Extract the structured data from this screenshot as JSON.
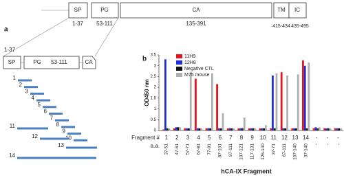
{
  "diagram": {
    "panel_label": "a",
    "domains": [
      {
        "label": "SP",
        "range": "1-37"
      },
      {
        "label": "PG",
        "range": "53-111"
      },
      {
        "label": "CA",
        "range": "135-391"
      },
      {
        "label": "TM",
        "range": "415-434"
      },
      {
        "label": "IC",
        "range": "435-495"
      }
    ],
    "zoom": {
      "range": "1-37",
      "sp": "SP",
      "pg": "PG",
      "pg_range": "53-111",
      "ca": "CA"
    },
    "fragment_labels": [
      "1",
      "2",
      "3",
      "4",
      "5",
      "6",
      "7",
      "8",
      "9",
      "10",
      "11",
      "12",
      "13",
      "14"
    ]
  },
  "chart_data": {
    "type": "bar",
    "panel_label": "b",
    "title": "hCA-IX Fragment",
    "y_label": "OD450 nm",
    "row_labels": [
      "Fragment #",
      "a.a."
    ],
    "categories": [
      "1",
      "2",
      "3",
      "4",
      "5",
      "6",
      "7",
      "8",
      "9",
      "10",
      "11",
      "12",
      "13",
      "14",
      "-",
      "-",
      "-"
    ],
    "aa": [
      "37-51",
      "47-61",
      "57-71",
      "67-81",
      "77-91",
      "87-101",
      "97-111",
      "107-121",
      "117-131",
      "126-140",
      "37-71",
      "67-111",
      "107-140",
      "37-140",
      "-",
      "-",
      "-"
    ],
    "series": [
      {
        "name": "11H9",
        "color": "#e8141c",
        "values": [
          0.05,
          0.1,
          0.1,
          2.4,
          0.1,
          2.15,
          0.1,
          0.1,
          0.1,
          0.1,
          0.1,
          2.7,
          0.1,
          3.25,
          0.1,
          0.1,
          0.1
        ]
      },
      {
        "name": "12H8",
        "color": "#1f2fd6",
        "values": [
          3.3,
          0.15,
          0.1,
          0.1,
          0.1,
          0.1,
          0.1,
          0.1,
          0.1,
          0.1,
          2.55,
          0.1,
          0.1,
          3.0,
          0.15,
          0.1,
          0.1
        ]
      },
      {
        "name": "Negative CTL",
        "color": "#111111",
        "values": [
          0.1,
          0.15,
          0.1,
          0.1,
          0.1,
          0.1,
          0.1,
          0.1,
          0.1,
          0.1,
          0.1,
          0.1,
          0.1,
          0.1,
          0.1,
          0.1,
          0.1
        ]
      },
      {
        "name": "M75 mouse",
        "color": "#b0b0b0",
        "values": [
          0.1,
          0.15,
          2.7,
          0.1,
          2.65,
          0.8,
          0.1,
          0.6,
          0.1,
          0.25,
          2.65,
          2.55,
          2.6,
          3.15,
          0.15,
          0.1,
          0.1
        ]
      }
    ],
    "ylim": [
      0,
      3.5
    ],
    "yticks": [
      0,
      0.5,
      1,
      1.5,
      2,
      2.5,
      3,
      3.5
    ]
  }
}
